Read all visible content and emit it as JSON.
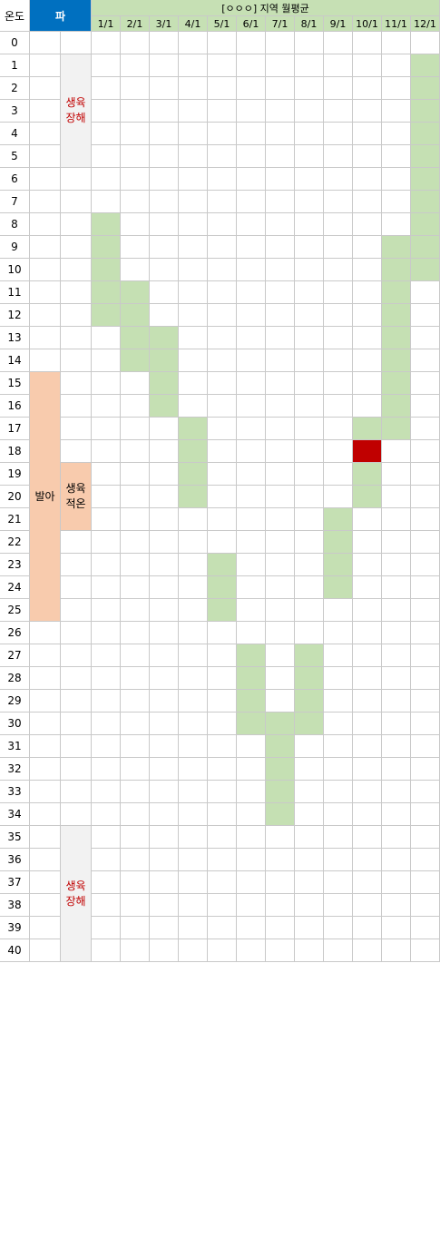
{
  "header": {
    "temp_label": "온도",
    "crop_label": "파",
    "region_title": "[ㅇㅇㅇ] 지역 월평균",
    "months": [
      "1/1",
      "2/1",
      "3/1",
      "4/1",
      "5/1",
      "6/1",
      "7/1",
      "8/1",
      "9/1",
      "10/1",
      "11/1",
      "12/1"
    ]
  },
  "temperatures": [
    0,
    1,
    2,
    3,
    4,
    5,
    6,
    7,
    8,
    9,
    10,
    11,
    12,
    13,
    14,
    15,
    16,
    17,
    18,
    19,
    20,
    21,
    22,
    23,
    24,
    25,
    26,
    27,
    28,
    29,
    30,
    31,
    32,
    33,
    34,
    35,
    36,
    37,
    38,
    39,
    40
  ],
  "zones": {
    "harm_low": {
      "label_line1": "생육",
      "label_line2": "장해",
      "from": 1,
      "to": 5
    },
    "germination": {
      "label": "발아",
      "from": 15,
      "to": 25
    },
    "optimal": {
      "label_line1": "생육",
      "label_line2": "적온",
      "from": 19,
      "to": 20
    },
    "harm_high": {
      "label_line1": "생육",
      "label_line2": "장해",
      "from": 35,
      "to": 40
    }
  },
  "monthly_ranges": [
    {
      "month": "1/1",
      "min": 8,
      "max": 12
    },
    {
      "month": "2/1",
      "min": 11,
      "max": 14
    },
    {
      "month": "3/1",
      "min": 13,
      "max": 16
    },
    {
      "month": "4/1",
      "min": 17,
      "max": 20
    },
    {
      "month": "5/1",
      "min": 23,
      "max": 25
    },
    {
      "month": "6/1",
      "min": 27,
      "max": 30
    },
    {
      "month": "7/1",
      "min": 30,
      "max": 34
    },
    {
      "month": "8/1",
      "min": 27,
      "max": 30
    },
    {
      "month": "9/1",
      "min": 21,
      "max": 24
    },
    {
      "month": "10/1",
      "min": 17,
      "max": 20
    },
    {
      "month": "11/1",
      "min": 9,
      "max": 17
    },
    {
      "month": "12/1",
      "min": 1,
      "max": 10
    }
  ],
  "highlight": {
    "month": "10/1",
    "temperature": 18
  },
  "colors": {
    "month_range": "#c5e0b3",
    "highlight": "#c00000",
    "header_crop": "#0070c0",
    "header_region": "#c6e0b4",
    "germination": "#f8cbad",
    "growth_harm_bg": "#f2f2f2",
    "growth_harm_text": "#c00000"
  }
}
